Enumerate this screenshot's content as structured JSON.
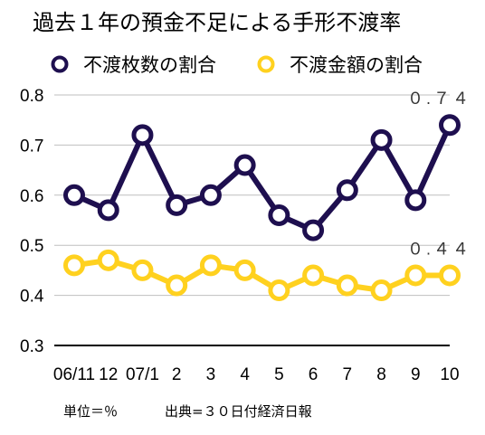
{
  "chart_data": {
    "type": "line",
    "title": "過去１年の預金不足による手形不渡率",
    "categories": [
      "06/11",
      "12",
      "07/1",
      "2",
      "3",
      "4",
      "5",
      "6",
      "7",
      "8",
      "9",
      "10"
    ],
    "series": [
      {
        "name": "不渡枚数の割合",
        "color": "#1e0f4f",
        "values": [
          0.6,
          0.57,
          0.72,
          0.58,
          0.6,
          0.66,
          0.56,
          0.53,
          0.61,
          0.71,
          0.59,
          0.74
        ],
        "end_label": "０.７４"
      },
      {
        "name": "不渡金額の割合",
        "color": "#ffd11f",
        "values": [
          0.46,
          0.47,
          0.45,
          0.42,
          0.46,
          0.45,
          0.41,
          0.44,
          0.42,
          0.41,
          0.44,
          0.44
        ],
        "end_label": "０.４４"
      }
    ],
    "ylim": [
      0.3,
      0.8
    ],
    "yticks": [
      "0.3",
      "0.4",
      "0.5",
      "0.6",
      "0.7",
      "0.8"
    ],
    "xlabel": "",
    "ylabel": "",
    "grid": true,
    "legend_position": "top"
  },
  "footnote": {
    "unit": "単位＝％",
    "source": "出典=３０日付経済日報"
  }
}
